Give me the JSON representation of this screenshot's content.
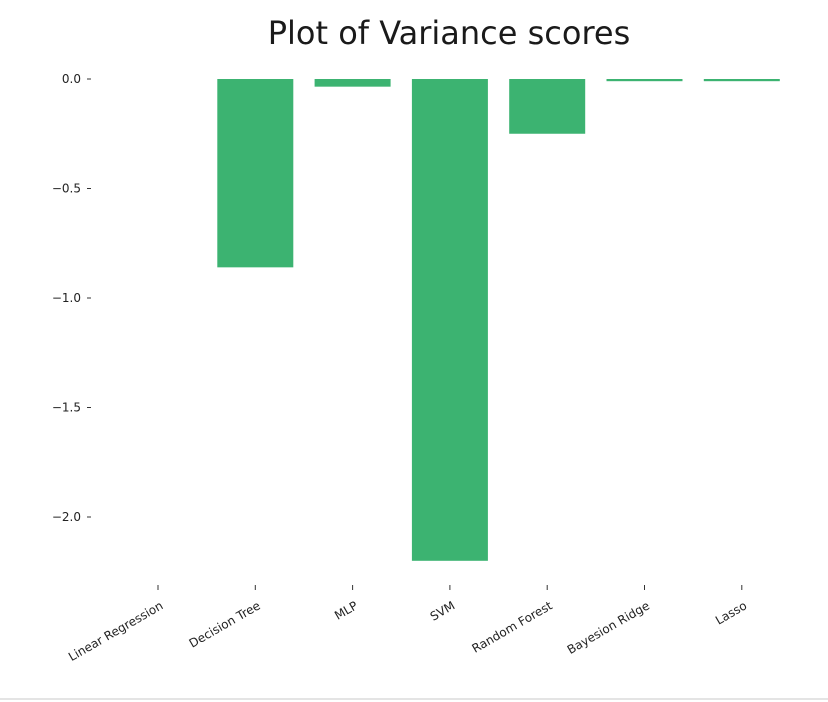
{
  "chart_data": {
    "type": "bar",
    "title": "Plot of Variance scores",
    "xlabel": "",
    "ylabel": "",
    "categories": [
      "Linear Regression",
      "Decision Tree",
      "MLP",
      "SVM",
      "Random Forest",
      "Bayesion Ridge",
      "Lasso"
    ],
    "values": [
      0.0,
      -0.86,
      -0.035,
      -2.2,
      -0.25,
      -0.01,
      -0.01
    ],
    "ylim": [
      -2.3,
      0.05
    ],
    "yticks": [
      0.0,
      -0.5,
      -1.0,
      -1.5,
      -2.0
    ],
    "ytick_labels": [
      "0.0",
      "−0.5",
      "−1.0",
      "−1.5",
      "−2.0"
    ],
    "grid": false,
    "legend": "none",
    "bar_color": "#3cb371"
  }
}
